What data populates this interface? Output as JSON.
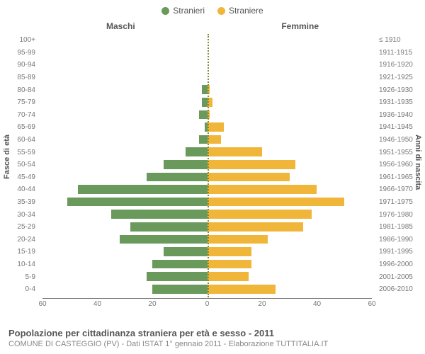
{
  "legend": {
    "male_label": "Stranieri",
    "female_label": "Straniere",
    "male_color": "#6a9a5b",
    "female_color": "#f0b63a"
  },
  "columns": {
    "left": "Maschi",
    "right": "Femmine"
  },
  "y_axis_left_label": "Fasce di età",
  "y_axis_right_label": "Anni di nascita",
  "x_axis": {
    "max": 60,
    "ticks": [
      60,
      40,
      20,
      0,
      20,
      40,
      60
    ]
  },
  "footer": {
    "title": "Popolazione per cittadinanza straniera per età e sesso - 2011",
    "subtitle": "COMUNE DI CASTEGGIO (PV) - Dati ISTAT 1° gennaio 2011 - Elaborazione TUTTITALIA.IT"
  },
  "styling": {
    "background_color": "#ffffff",
    "axis_text_color": "#777777",
    "label_fontsize": 10,
    "title_fontsize": 12,
    "centerline_color": "#888833",
    "bar_height_ratio": 0.72
  },
  "rows": [
    {
      "age": "100+",
      "birth": "≤ 1910",
      "m": 0,
      "f": 0
    },
    {
      "age": "95-99",
      "birth": "1911-1915",
      "m": 0,
      "f": 0
    },
    {
      "age": "90-94",
      "birth": "1916-1920",
      "m": 0,
      "f": 0
    },
    {
      "age": "85-89",
      "birth": "1921-1925",
      "m": 0,
      "f": 0
    },
    {
      "age": "80-84",
      "birth": "1926-1930",
      "m": 2,
      "f": 1
    },
    {
      "age": "75-79",
      "birth": "1931-1935",
      "m": 2,
      "f": 2
    },
    {
      "age": "70-74",
      "birth": "1936-1940",
      "m": 3,
      "f": 1
    },
    {
      "age": "65-69",
      "birth": "1941-1945",
      "m": 1,
      "f": 6
    },
    {
      "age": "60-64",
      "birth": "1946-1950",
      "m": 3,
      "f": 5
    },
    {
      "age": "55-59",
      "birth": "1951-1955",
      "m": 8,
      "f": 20
    },
    {
      "age": "50-54",
      "birth": "1956-1960",
      "m": 16,
      "f": 32
    },
    {
      "age": "45-49",
      "birth": "1961-1965",
      "m": 22,
      "f": 30
    },
    {
      "age": "40-44",
      "birth": "1966-1970",
      "m": 47,
      "f": 40
    },
    {
      "age": "35-39",
      "birth": "1971-1975",
      "m": 51,
      "f": 50
    },
    {
      "age": "30-34",
      "birth": "1976-1980",
      "m": 35,
      "f": 38
    },
    {
      "age": "25-29",
      "birth": "1981-1985",
      "m": 28,
      "f": 35
    },
    {
      "age": "20-24",
      "birth": "1986-1990",
      "m": 32,
      "f": 22
    },
    {
      "age": "15-19",
      "birth": "1991-1995",
      "m": 16,
      "f": 16
    },
    {
      "age": "10-14",
      "birth": "1996-2000",
      "m": 20,
      "f": 16
    },
    {
      "age": "5-9",
      "birth": "2001-2005",
      "m": 22,
      "f": 15
    },
    {
      "age": "0-4",
      "birth": "2006-2010",
      "m": 20,
      "f": 25
    }
  ]
}
